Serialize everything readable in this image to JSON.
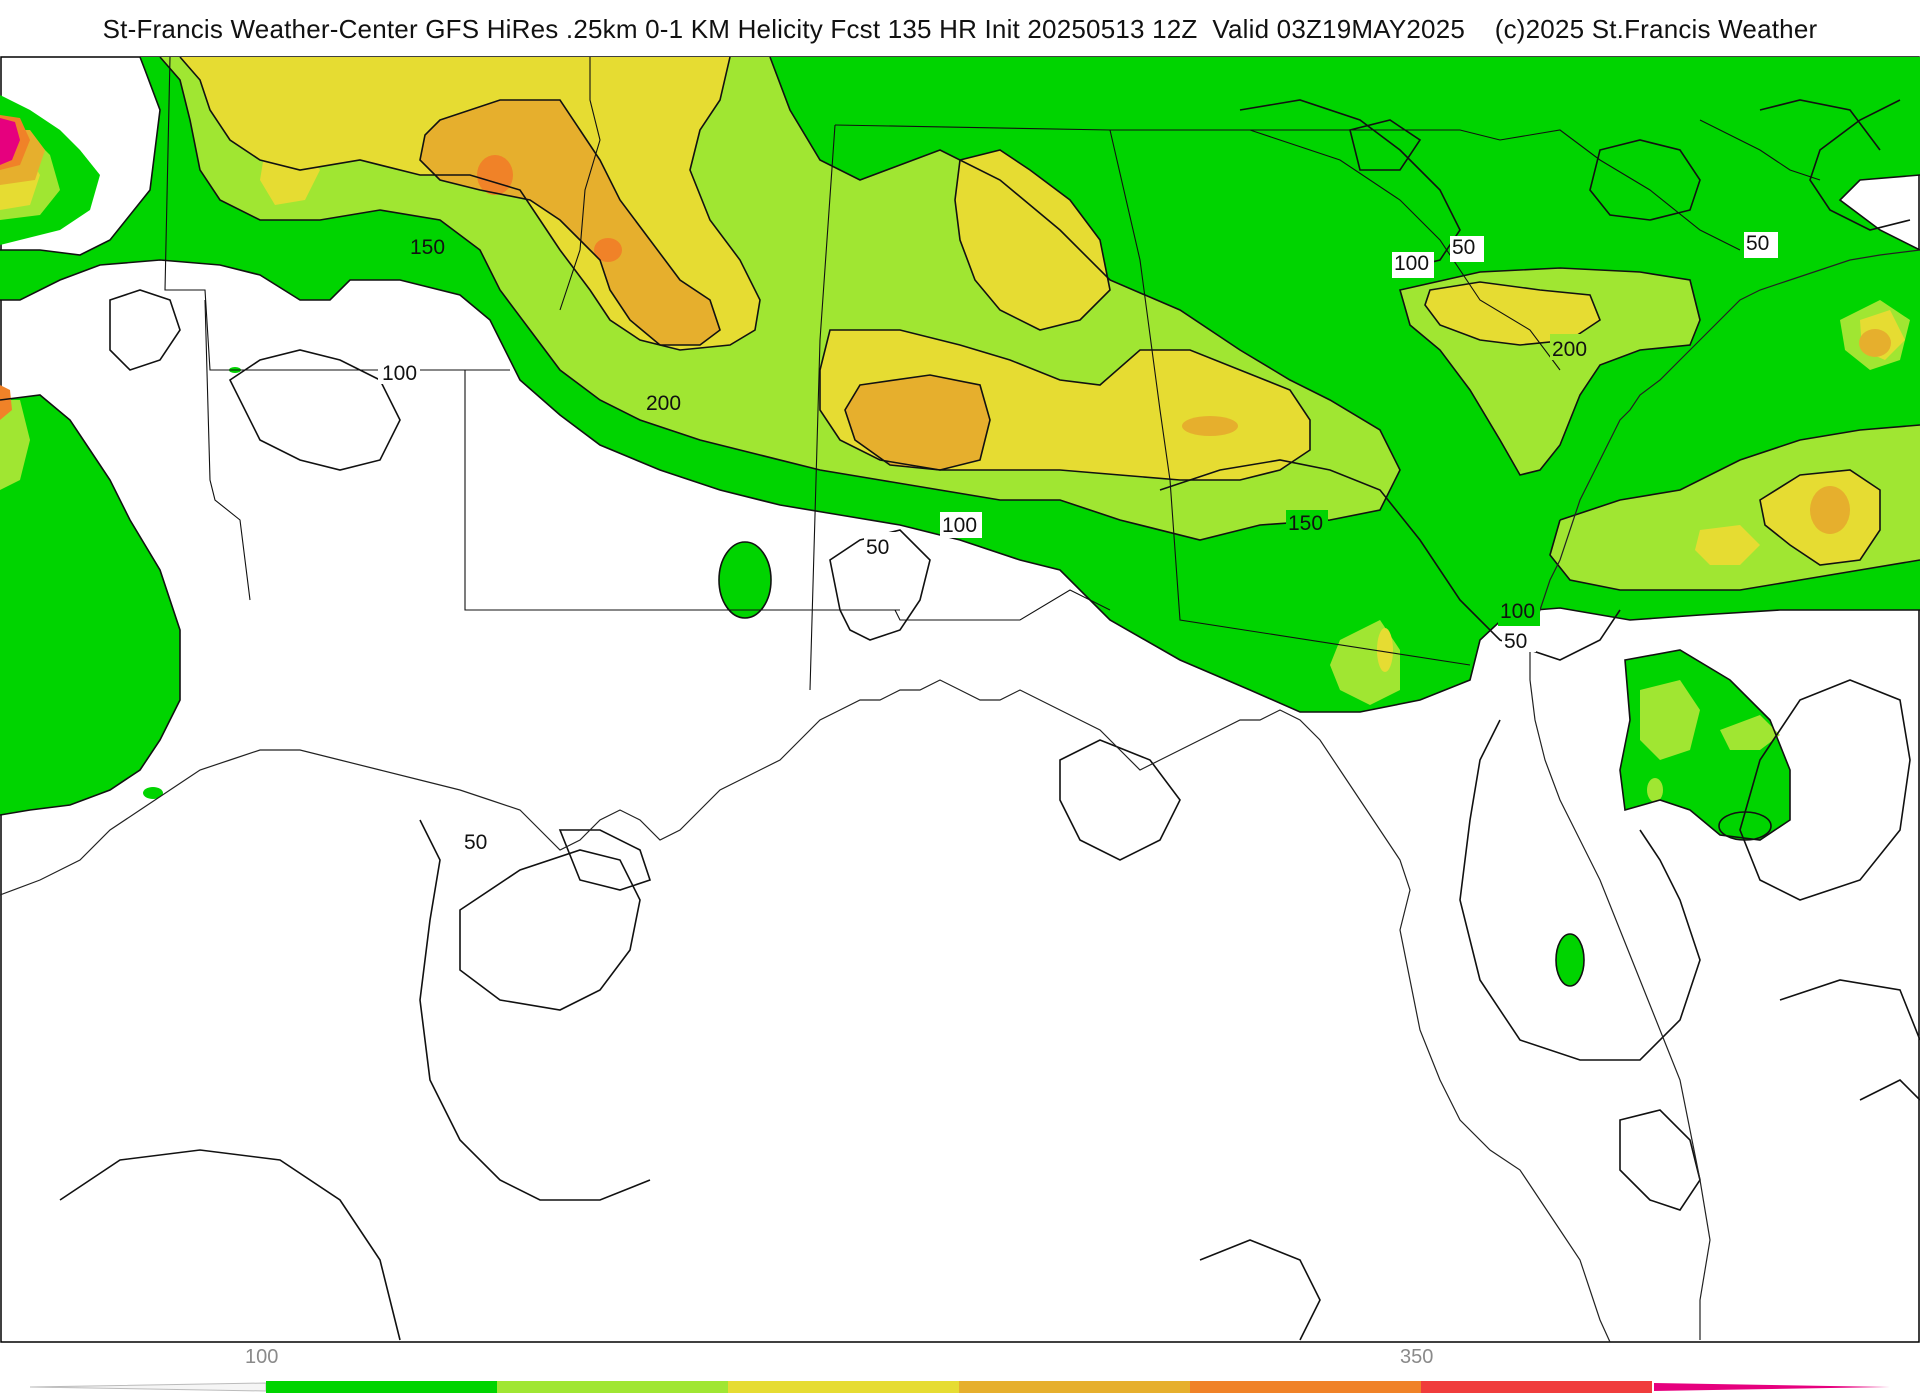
{
  "title": "St-Francis Weather-Center GFS HiRes .25km 0-1 KM Helicity Fcst 135 HR Init 20250513 12Z  Valid 03Z19MAY2025    (c)2025 St.Francis Weather",
  "legend": {
    "ticks": [
      "100",
      "350"
    ],
    "colors": [
      "#00d400",
      "#a0e632",
      "#e6dc32",
      "#e6af2d",
      "#f08228",
      "#f03c3c",
      "#f01e8c",
      "#f00082"
    ]
  },
  "contour_labels": [
    "150",
    "100",
    "200",
    "50",
    "100",
    "150",
    "50",
    "100",
    "50",
    "200",
    "100",
    "50",
    "50",
    "50"
  ],
  "colors": {
    "level_100": "#00d400",
    "level_150": "#a0e632",
    "level_200": "#e6dc32",
    "level_250": "#e6af2d",
    "level_300": "#f08228",
    "level_high": "#e6007e",
    "background": "#ffffff"
  }
}
